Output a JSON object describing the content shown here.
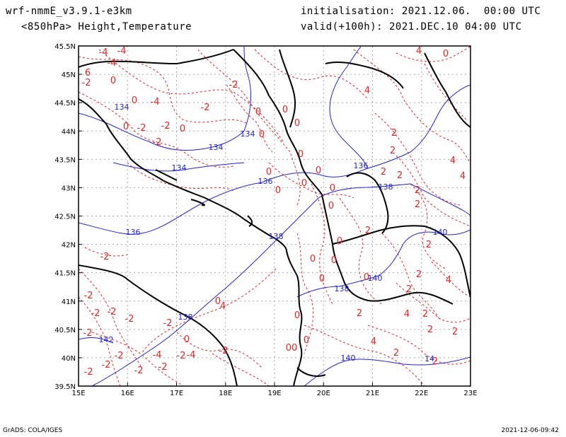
{
  "header": {
    "model": "wrf-nmmE_v3.9.1-e3km",
    "field": "<850hPa> Height,Temperature",
    "init": "initialisation: 2021.12.06.  00:00 UTC",
    "valid": "valid(+100h): 2021.DEC.10 04:00 UTC"
  },
  "footer": {
    "credit": "GrADS: COLA/IGES",
    "timestamp": "2021-12-06-09:42"
  },
  "map": {
    "lon_labels": [
      "15E",
      "16E",
      "17E",
      "18E",
      "19E",
      "20E",
      "21E",
      "22E",
      "23E"
    ],
    "lat_labels": [
      "45.5N",
      "45N",
      "44.5N",
      "44N",
      "43.5N",
      "43N",
      "42.5N",
      "42N",
      "41.5N",
      "41N",
      "40.5N",
      "40N",
      "39.5N"
    ],
    "colors": {
      "height": "#2222dd",
      "temperature": "#ee2222",
      "coast": "#000000"
    },
    "height_labels": [
      "134",
      "134",
      "134",
      "134",
      "136",
      "136",
      "136",
      "138",
      "138",
      "138",
      "138",
      "140",
      "140",
      "140",
      "142",
      "14"
    ],
    "temp_labels": [
      "-4",
      "-4",
      "-4",
      "-4",
      "-2",
      "-2",
      "-2",
      "-2",
      "-2",
      "-2",
      "-2",
      "-2",
      "-4",
      "-4",
      "6",
      "-2",
      "-2",
      "-2",
      "-2",
      "0",
      "0",
      "0",
      "0",
      "0",
      "0",
      "0",
      "0",
      "0",
      "0",
      "0",
      "0",
      "0",
      "0",
      "0",
      "0",
      "0",
      "0",
      "0",
      "0",
      "00",
      "4",
      "0",
      "4",
      "2",
      "2",
      "2",
      "2",
      "2",
      "2",
      "2",
      "2",
      "4",
      "4",
      "4",
      "2",
      "2",
      "2",
      "4",
      "4",
      "2",
      "2",
      "0",
      "0",
      "-2",
      "-2",
      "-2",
      "-2",
      "-2",
      "-2",
      "-2",
      "-2",
      "2",
      "2",
      "2",
      "4",
      "0",
      "0"
    ]
  }
}
